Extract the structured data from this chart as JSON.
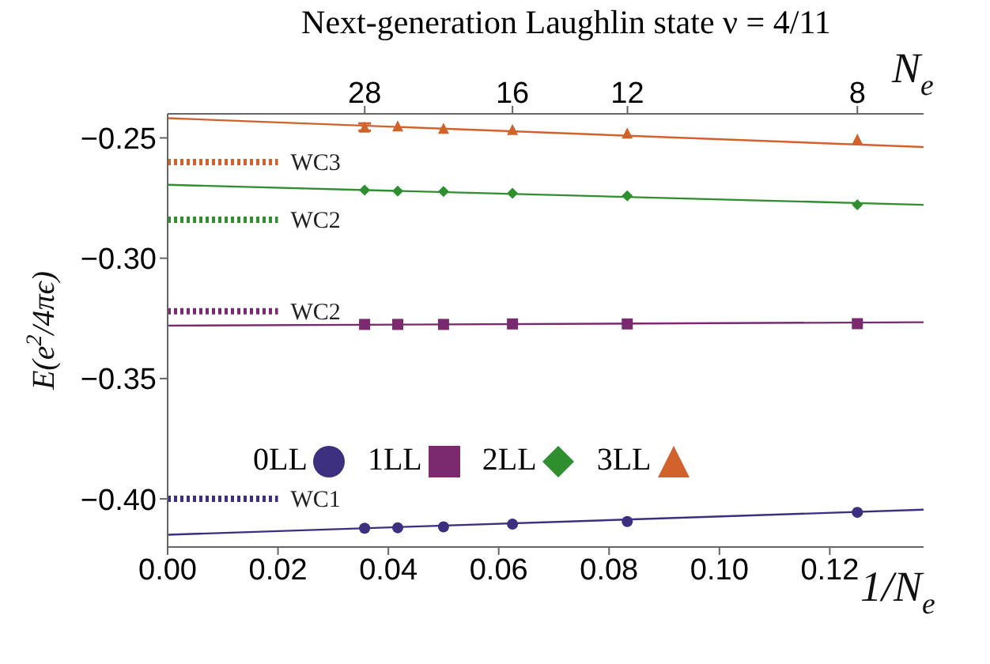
{
  "chart_data": {
    "type": "scatter",
    "title": "Next-generation Laughlin state ν = 4/11",
    "xlabel": "1/N$_{e}$",
    "x2label": "N$_{e}$",
    "ylabel": "E(e$^{2}$/4πϵ)",
    "xlim": [
      0,
      0.137
    ],
    "ylim": [
      -0.42,
      -0.24
    ],
    "xticks": [
      {
        "value": 0,
        "label": "0.00"
      },
      {
        "value": 0.02,
        "label": "0.02"
      },
      {
        "value": 0.04,
        "label": "0.04"
      },
      {
        "value": 0.06,
        "label": "0.06"
      },
      {
        "value": 0.08,
        "label": "0.08"
      },
      {
        "value": 0.1,
        "label": "0.10"
      },
      {
        "value": 0.12,
        "label": "0.12"
      }
    ],
    "annotations": [
      "28",
      "16",
      "12",
      "8"
    ],
    "yticks": [
      {
        "value": -0.4,
        "label": "−0.40"
      },
      {
        "value": -0.35,
        "label": "−0.35"
      },
      {
        "value": -0.3,
        "label": "−0.30"
      },
      {
        "value": -0.25,
        "label": "−0.25"
      }
    ],
    "grid": false,
    "legend": "center",
    "series": [
      {
        "name": "0LL",
        "marker": "circle",
        "color": "#3c2f80",
        "x": [
          0.0357,
          0.0417,
          0.05,
          0.0625,
          0.0833,
          0.125
        ],
        "values": [
          -0.4122,
          -0.412,
          -0.4116,
          -0.4105,
          -0.4094,
          -0.4056
        ]
      },
      {
        "name": "1LL",
        "marker": "square",
        "color": "#7b2a6f",
        "x": [
          0.0357,
          0.0417,
          0.05,
          0.0625,
          0.0833,
          0.125
        ],
        "values": [
          -0.3275,
          -0.3275,
          -0.3275,
          -0.3273,
          -0.3273,
          -0.3272
        ]
      },
      {
        "name": "2LL",
        "marker": "diamond",
        "color": "#2f8f2f",
        "x": [
          0.0357,
          0.0417,
          0.05,
          0.0625,
          0.0833,
          0.125
        ],
        "values": [
          -0.2717,
          -0.2721,
          -0.2723,
          -0.273,
          -0.2741,
          -0.2778
        ]
      },
      {
        "name": "3LL",
        "marker": "triangle",
        "color": "#d2622b",
        "x": [
          0.0357,
          0.0417,
          0.05,
          0.0625,
          0.0833,
          0.125
        ],
        "values": [
          -0.2455,
          -0.245,
          -0.246,
          -0.2465,
          -0.248,
          -0.2505
        ],
        "errors": [
          0.0015,
          null,
          null,
          null,
          null,
          null
        ]
      },
      {
        "type": "line",
        "marker": "none",
        "line_style": "solid",
        "color": "#3c2f80",
        "x": [
          0,
          0.137
        ],
        "values": [
          -0.4149,
          -0.4045
        ]
      },
      {
        "type": "line",
        "marker": "none",
        "line_style": "solid",
        "color": "#7b2a6f",
        "x": [
          0,
          0.137
        ],
        "values": [
          -0.328,
          -0.3266
        ]
      },
      {
        "type": "line",
        "marker": "none",
        "line_style": "solid",
        "color": "#2f8f2f",
        "x": [
          0,
          0.137
        ],
        "values": [
          -0.2695,
          -0.2778
        ]
      },
      {
        "type": "line",
        "marker": "none",
        "line_style": "solid",
        "color": "#d2622b",
        "x": [
          0,
          0.137
        ],
        "values": [
          -0.2418,
          -0.2538
        ]
      },
      {
        "name": "WC3",
        "type": "line",
        "marker": "none",
        "line_style": "dotted",
        "color": "#d2622b",
        "x": [
          0,
          0.02
        ],
        "values": [
          -0.26,
          -0.26
        ]
      },
      {
        "name": "WC2",
        "type": "line",
        "marker": "none",
        "line_style": "dotted",
        "color": "#2f8f2f",
        "x": [
          0,
          0.02
        ],
        "values": [
          -0.284,
          -0.284
        ]
      },
      {
        "name": "WC2",
        "type": "line",
        "marker": "none",
        "line_style": "dotted",
        "color": "#7b2a6f",
        "x": [
          0,
          0.02
        ],
        "values": [
          -0.322,
          -0.322
        ]
      },
      {
        "name": "WC1",
        "type": "line",
        "marker": "none",
        "line_style": "dotted",
        "color": "#3c2f80",
        "x": [
          0,
          0.02
        ],
        "values": [
          -0.4,
          -0.4
        ]
      }
    ]
  }
}
